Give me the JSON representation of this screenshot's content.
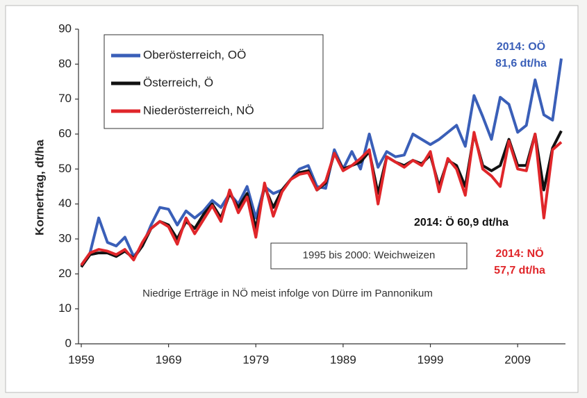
{
  "chart_data": {
    "type": "line",
    "ylabel": "Kornertrag, dt/ha",
    "x": [
      1959,
      1960,
      1961,
      1962,
      1963,
      1964,
      1965,
      1966,
      1967,
      1968,
      1969,
      1970,
      1971,
      1972,
      1973,
      1974,
      1975,
      1976,
      1977,
      1978,
      1979,
      1980,
      1981,
      1982,
      1983,
      1984,
      1985,
      1986,
      1987,
      1988,
      1989,
      1990,
      1991,
      1992,
      1993,
      1994,
      1995,
      1996,
      1997,
      1998,
      1999,
      2000,
      2001,
      2002,
      2003,
      2004,
      2005,
      2006,
      2007,
      2008,
      2009,
      2010,
      2011,
      2012,
      2013,
      2014
    ],
    "series": [
      {
        "name": "Oberösterreich, OÖ",
        "color": "#3a5fb8",
        "values": [
          22.5,
          26,
          36,
          29,
          28,
          30.5,
          25,
          28,
          34,
          39,
          38.5,
          34,
          38,
          36,
          38,
          41,
          39,
          43,
          40,
          45,
          36,
          45,
          43,
          44,
          47,
          50,
          51,
          45,
          44.5,
          55.5,
          50,
          55,
          50,
          60,
          50.5,
          55,
          53.5,
          54,
          60,
          58.5,
          57,
          58.5,
          60.5,
          62.5,
          56.5,
          71,
          65,
          58.5,
          70.5,
          68.5,
          60.5,
          62.5,
          75.5,
          65.5,
          64,
          81.6
        ]
      },
      {
        "name": "Österreich, Ö",
        "color": "#111111",
        "values": [
          22,
          25.5,
          26,
          26,
          25,
          26.5,
          24.5,
          28,
          33,
          35,
          34,
          30,
          35,
          33,
          37,
          40,
          36,
          43,
          39,
          43,
          33,
          45,
          39,
          44,
          47,
          49,
          49.5,
          44,
          46,
          54.5,
          50,
          51,
          52,
          55,
          43,
          53.5,
          52,
          51,
          52.5,
          51.5,
          54,
          45,
          52.5,
          51,
          45,
          60,
          51,
          49.5,
          51,
          58.5,
          51,
          51,
          60,
          44,
          56,
          60.9
        ]
      },
      {
        "name": "Niederösterreich, NÖ",
        "color": "#e0262a",
        "values": [
          22.5,
          26,
          27,
          26.5,
          25.5,
          27,
          24,
          29,
          33,
          35,
          33.5,
          28.5,
          36,
          31.5,
          35.5,
          39.5,
          35,
          44,
          37.5,
          42,
          30.5,
          46,
          36.5,
          43.5,
          47,
          48.5,
          49,
          44,
          46.5,
          54.5,
          49.5,
          51,
          53,
          55.5,
          40,
          53.5,
          52,
          50.5,
          52.5,
          51,
          55,
          43.5,
          53,
          50,
          42.5,
          60.5,
          50,
          48,
          45,
          58,
          50,
          49.5,
          60,
          36,
          55.5,
          57.7
        ]
      }
    ],
    "xlim": [
      1959,
      2014
    ],
    "xticks": [
      1959,
      1969,
      1979,
      1989,
      1999,
      2009
    ],
    "ylim": [
      0,
      90
    ],
    "yticks": [
      0,
      10,
      20,
      30,
      40,
      50,
      60,
      70,
      80,
      90
    ],
    "grid": false,
    "annotations": [
      {
        "text": "2014: OÖ",
        "color": "#3a5fb8"
      },
      {
        "text": "81,6 dt/ha",
        "color": "#3a5fb8"
      },
      {
        "text": "2014: Ö 60,9 dt/ha",
        "color": "#111111"
      },
      {
        "text": "2014: NÖ",
        "color": "#e0262a"
      },
      {
        "text": "57,7 dt/ha",
        "color": "#e0262a"
      },
      {
        "text": "1995 bis 2000: Weichweizen",
        "color": "#333333"
      },
      {
        "text": "Niedrige Erträge in NÖ meist infolge von Dürre im Pannonikum",
        "color": "#333333"
      }
    ]
  }
}
